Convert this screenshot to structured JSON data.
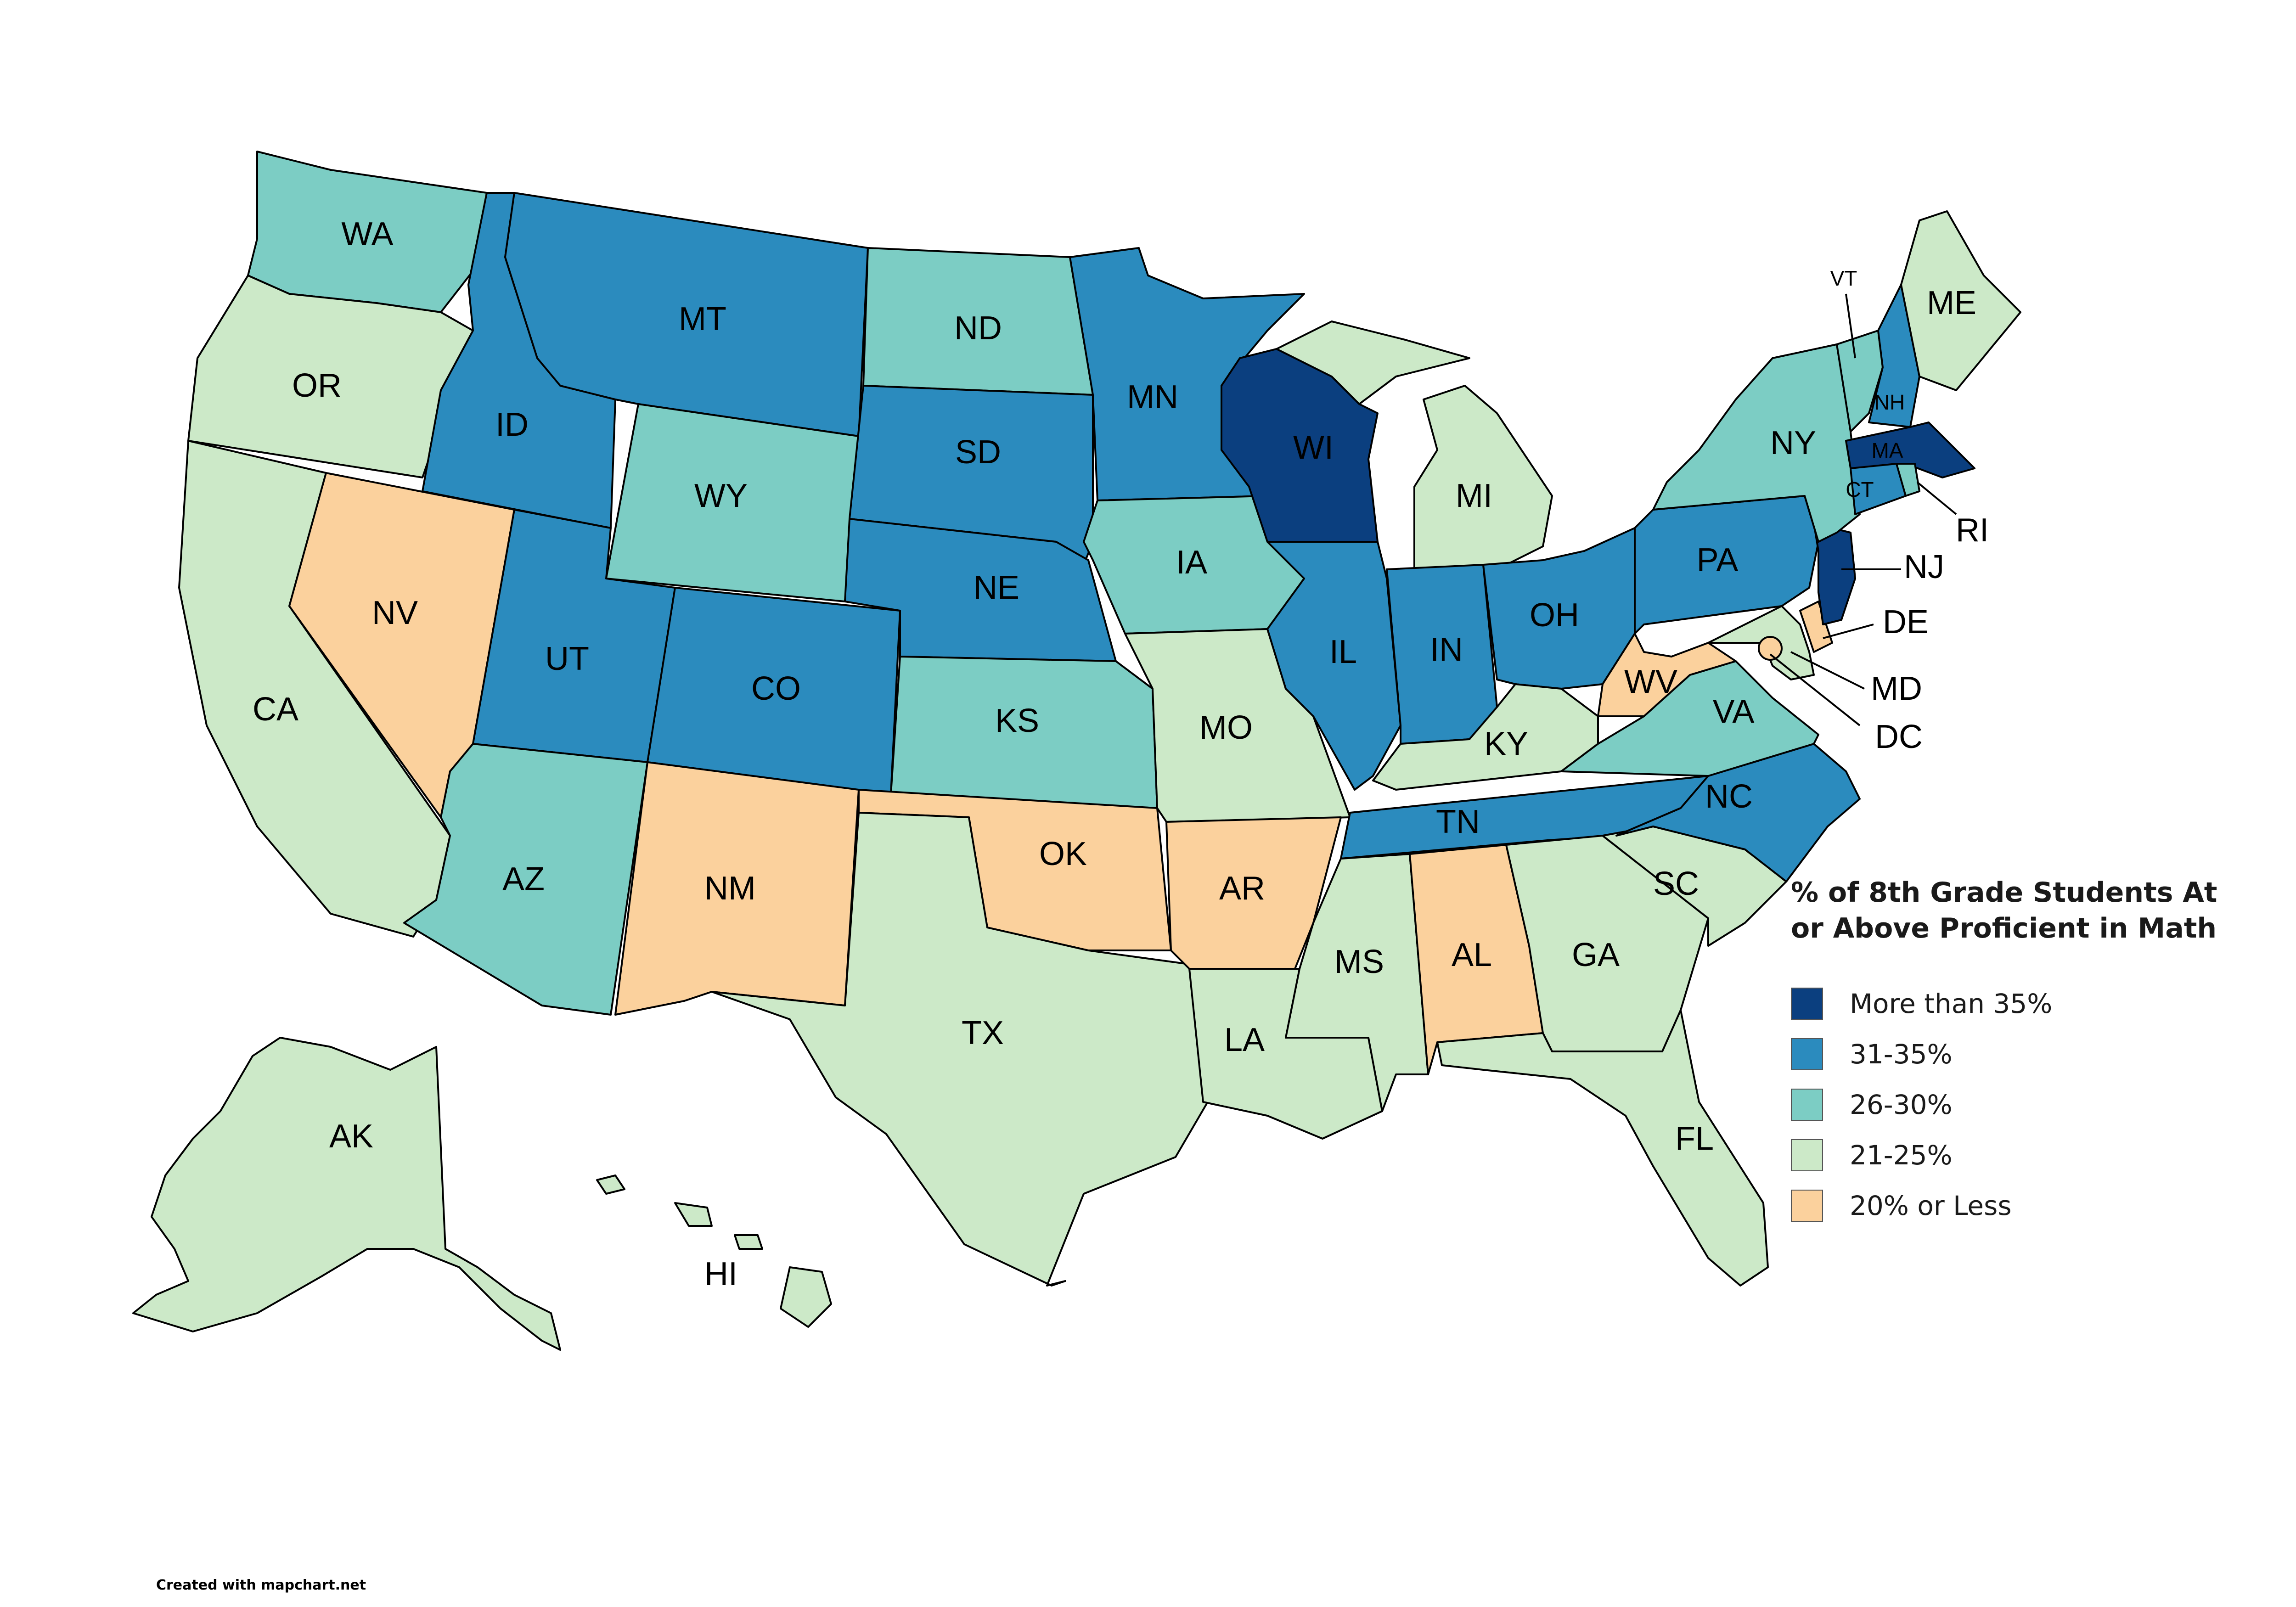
{
  "legend": {
    "title_line1": "% of 8th Grade Students At",
    "title_line2": "or Above Proficient in Math",
    "items": [
      {
        "label": "More than 35%",
        "color": "#0b3f7f"
      },
      {
        "label": "31-35%",
        "color": "#2b8bbe"
      },
      {
        "label": "26-30%",
        "color": "#7ccdc4"
      },
      {
        "label": "21-25%",
        "color": "#cce9c8"
      },
      {
        "label": "20% or Less",
        "color": "#fbd19d"
      }
    ]
  },
  "credit": "Created with mapchart.net",
  "states": {
    "WA": {
      "name": "WA",
      "category": 2
    },
    "OR": {
      "name": "OR",
      "category": 3
    },
    "CA": {
      "name": "CA",
      "category": 3
    },
    "NV": {
      "name": "NV",
      "category": 4
    },
    "ID": {
      "name": "ID",
      "category": 1
    },
    "MT": {
      "name": "MT",
      "category": 1
    },
    "WY": {
      "name": "WY",
      "category": 2
    },
    "UT": {
      "name": "UT",
      "category": 1
    },
    "CO": {
      "name": "CO",
      "category": 1
    },
    "AZ": {
      "name": "AZ",
      "category": 2
    },
    "NM": {
      "name": "NM",
      "category": 4
    },
    "ND": {
      "name": "ND",
      "category": 2
    },
    "SD": {
      "name": "SD",
      "category": 1
    },
    "NE": {
      "name": "NE",
      "category": 1
    },
    "KS": {
      "name": "KS",
      "category": 2
    },
    "OK": {
      "name": "OK",
      "category": 4
    },
    "TX": {
      "name": "TX",
      "category": 3
    },
    "MN": {
      "name": "MN",
      "category": 1
    },
    "IA": {
      "name": "IA",
      "category": 2
    },
    "MO": {
      "name": "MO",
      "category": 3
    },
    "AR": {
      "name": "AR",
      "category": 4
    },
    "LA": {
      "name": "LA",
      "category": 3
    },
    "WI": {
      "name": "WI",
      "category": 0
    },
    "IL": {
      "name": "IL",
      "category": 1
    },
    "MI": {
      "name": "MI",
      "category": 3
    },
    "IN": {
      "name": "IN",
      "category": 1
    },
    "OH": {
      "name": "OH",
      "category": 1
    },
    "KY": {
      "name": "KY",
      "category": 3
    },
    "TN": {
      "name": "TN",
      "category": 1
    },
    "MS": {
      "name": "MS",
      "category": 3
    },
    "AL": {
      "name": "AL",
      "category": 4
    },
    "GA": {
      "name": "GA",
      "category": 3
    },
    "FL": {
      "name": "FL",
      "category": 3
    },
    "SC": {
      "name": "SC",
      "category": 3
    },
    "NC": {
      "name": "NC",
      "category": 1
    },
    "VA": {
      "name": "VA",
      "category": 2
    },
    "WV": {
      "name": "WV",
      "category": 4
    },
    "PA": {
      "name": "PA",
      "category": 1
    },
    "NY": {
      "name": "NY",
      "category": 2
    },
    "NJ": {
      "name": "NJ",
      "category": 0
    },
    "DE": {
      "name": "DE",
      "category": 4
    },
    "MD": {
      "name": "MD",
      "category": 3
    },
    "DC": {
      "name": "DC",
      "category": 4
    },
    "CT": {
      "name": "CT",
      "category": 1
    },
    "RI": {
      "name": "RI",
      "category": 2
    },
    "MA": {
      "name": "MA",
      "category": 0
    },
    "VT": {
      "name": "VT",
      "category": 2
    },
    "NH": {
      "name": "NH",
      "category": 1
    },
    "ME": {
      "name": "ME",
      "category": 3
    },
    "AK": {
      "name": "AK",
      "category": 3
    },
    "HI": {
      "name": "HI",
      "category": 3
    }
  }
}
